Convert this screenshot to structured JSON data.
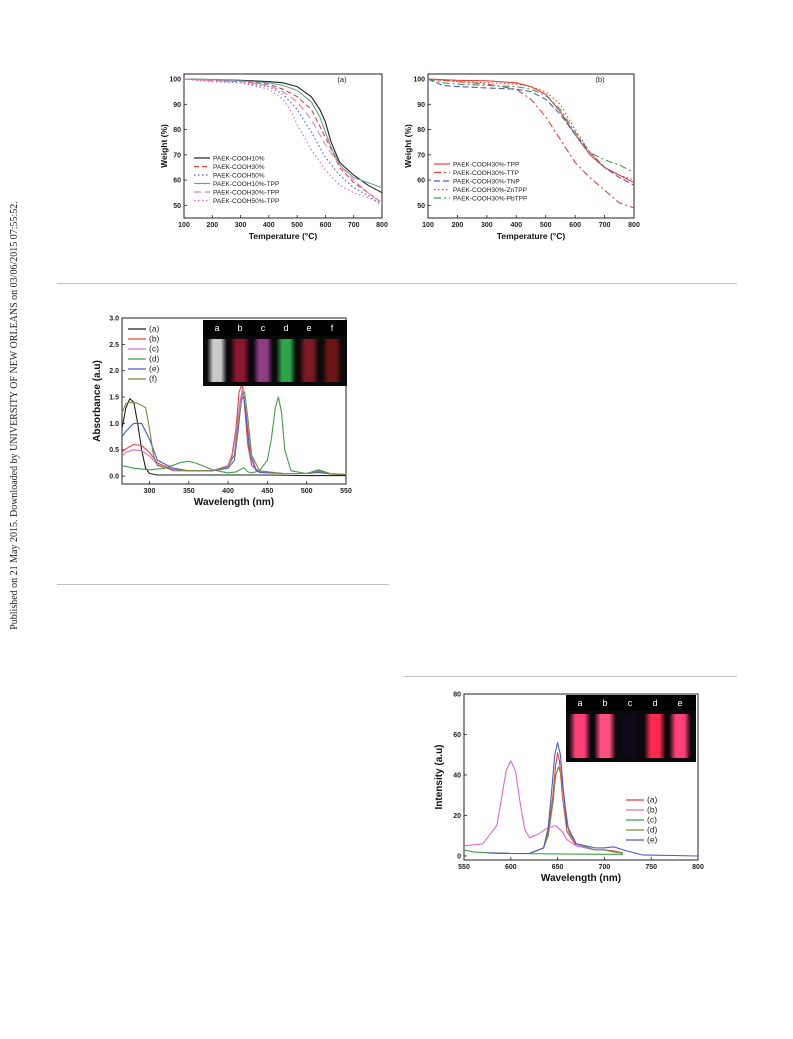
{
  "margin_note": "Published on 21 May 2015. Downloaded by UNIVERSITY OF NEW ORLEANS on 03/06/2015 07:55:52.",
  "colors": {
    "black": "#222222",
    "red": "#e8413d",
    "magenta": "#d66bd1",
    "green": "#3f9f49",
    "blue": "#4a5cc9",
    "olive": "#7d8a3a",
    "teal": "#5fa7a0",
    "pink": "#e57fc0",
    "rule": "#bfbfbf"
  },
  "inset_uvvis": {
    "labels": [
      "a",
      "b",
      "c",
      "d",
      "e",
      "f"
    ],
    "vial_colors": [
      "#c9c9c9",
      "#8a1630",
      "#8e3c86",
      "#2ea34a",
      "#7a1a22",
      "#6b1518"
    ]
  },
  "inset_pl": {
    "labels": [
      "a",
      "b",
      "c",
      "d",
      "e"
    ],
    "vial_colors": [
      "#ff3f78",
      "#ff4f80",
      "#12081c",
      "#ff2850",
      "#ff3f78"
    ]
  },
  "chart_data": [
    {
      "type": "line",
      "panel": "(a)",
      "xlabel": "Temperature (°C)",
      "ylabel": "Weight (%)",
      "xlim": [
        100,
        800
      ],
      "ylim": [
        45,
        102
      ],
      "xticks": [
        100,
        200,
        300,
        400,
        500,
        600,
        700,
        800
      ],
      "yticks": [
        50,
        60,
        70,
        80,
        90,
        100
      ],
      "legend_position": "bottom-left",
      "series": [
        {
          "name": "PAEK-COOH10%",
          "color": "#222222",
          "dash": "",
          "x": [
            100,
            200,
            300,
            400,
            450,
            500,
            550,
            580,
            600,
            620,
            650,
            700,
            750,
            800
          ],
          "y": [
            100,
            99.8,
            99.5,
            99,
            98.5,
            97,
            93,
            88,
            83,
            75,
            67,
            62,
            58,
            55
          ]
        },
        {
          "name": "PAEK-COOH30%",
          "color": "#e8413d",
          "dash": "5,3",
          "x": [
            100,
            200,
            300,
            400,
            450,
            500,
            550,
            600,
            630,
            650,
            700,
            750,
            800
          ],
          "y": [
            100,
            99.5,
            99,
            98,
            96,
            93,
            88,
            77,
            70,
            65,
            59,
            55,
            51
          ]
        },
        {
          "name": "PAEK-COOH50%",
          "color": "#4a5cc9",
          "dash": "1.5,2.5",
          "x": [
            100,
            200,
            300,
            400,
            450,
            500,
            550,
            600,
            650,
            700,
            750,
            800
          ],
          "y": [
            100,
            99,
            98.5,
            97,
            94,
            88,
            79,
            69,
            62,
            57,
            54,
            50
          ]
        },
        {
          "name": "PAEK-COOH10%-TPP",
          "color": "#5fa7a0",
          "dash": "",
          "x": [
            100,
            200,
            300,
            400,
            450,
            500,
            550,
            580,
            600,
            620,
            650,
            700,
            750,
            800
          ],
          "y": [
            100,
            99.8,
            99.3,
            98.5,
            97.5,
            95.5,
            91,
            85,
            79,
            73,
            66,
            61,
            59,
            57
          ]
        },
        {
          "name": "PAEK-COOH30%-TPP",
          "color": "#e57fc0",
          "dash": "7,4",
          "x": [
            100,
            200,
            300,
            400,
            450,
            500,
            550,
            600,
            650,
            700,
            750,
            800
          ],
          "y": [
            100,
            99.3,
            99,
            97.5,
            95,
            91,
            84,
            74,
            66,
            60,
            55,
            51
          ]
        },
        {
          "name": "PAEK-COOH50%-TPP",
          "color": "#d66bd1",
          "dash": "1.5,2.5",
          "x": [
            100,
            200,
            300,
            400,
            450,
            480,
            500,
            550,
            600,
            650,
            700,
            750,
            800
          ],
          "y": [
            100,
            99,
            98.5,
            96,
            92,
            87,
            82,
            72,
            64,
            58,
            55,
            53,
            51
          ]
        }
      ]
    },
    {
      "type": "line",
      "panel": "(b)",
      "xlabel": "Temperature (°C)",
      "ylabel": "Weight (%)",
      "xlim": [
        100,
        800
      ],
      "ylim": [
        45,
        102
      ],
      "xticks": [
        100,
        200,
        300,
        400,
        500,
        600,
        700,
        800
      ],
      "yticks": [
        50,
        60,
        70,
        80,
        90,
        100
      ],
      "legend_position": "bottom-left",
      "series": [
        {
          "name": "PAEK-COOH30%-TPP",
          "color": "#e8413d",
          "dash": "",
          "x": [
            100,
            200,
            300,
            400,
            450,
            500,
            550,
            600,
            650,
            700,
            750,
            800
          ],
          "y": [
            100,
            99.5,
            99.3,
            98.5,
            97,
            94,
            87,
            78,
            70,
            65,
            62,
            59
          ]
        },
        {
          "name": "PAEK-COOH30%-TTP",
          "color": "#e8413d",
          "dash": "7,3,2,3",
          "x": [
            100,
            200,
            300,
            400,
            450,
            500,
            550,
            600,
            650,
            700,
            750,
            800
          ],
          "y": [
            100,
            99,
            98,
            96,
            92,
            85,
            76,
            67,
            61,
            56,
            51,
            49
          ]
        },
        {
          "name": "PAEK-COOH30%-TNP",
          "color": "#4a5cc9",
          "dash": "6,3",
          "x": [
            100,
            150,
            200,
            300,
            400,
            450,
            500,
            550,
            600,
            650,
            700,
            750,
            800
          ],
          "y": [
            100,
            97.5,
            97,
            96.5,
            96,
            95,
            92,
            86,
            78,
            71,
            65,
            61,
            58
          ]
        },
        {
          "name": "PAEK-COOH30%-ZnTPP",
          "color": "#e8413d",
          "dash": "1.5,2.5",
          "x": [
            100,
            200,
            300,
            400,
            450,
            500,
            550,
            600,
            650,
            700,
            750,
            800
          ],
          "y": [
            100,
            99,
            98.5,
            98,
            97,
            95,
            90,
            80,
            71,
            65,
            62,
            60
          ]
        },
        {
          "name": "PAEK-COOH30%-PbTPP",
          "color": "#3f9f49",
          "dash": "7,3,2,3",
          "x": [
            100,
            150,
            200,
            300,
            400,
            450,
            500,
            550,
            600,
            650,
            700,
            750,
            800
          ],
          "y": [
            100,
            98.5,
            98,
            97.5,
            97,
            96,
            93.5,
            88,
            79,
            71,
            68,
            66,
            63
          ]
        }
      ]
    },
    {
      "type": "line",
      "xlabel": "Wavelength (nm)",
      "ylabel": "Absorbance (a.u)",
      "xlim": [
        265,
        550
      ],
      "ylim": [
        -0.15,
        3.0
      ],
      "xticks": [
        300,
        350,
        400,
        450,
        500,
        550
      ],
      "yticks": [
        0.0,
        0.5,
        1.0,
        1.5,
        2.0,
        2.5,
        3.0
      ],
      "yticklabels": [
        "0.0",
        "0.5",
        "1.0",
        "1.5",
        "2.0",
        "2.5",
        "3.0"
      ],
      "legend_position": "top-left",
      "series": [
        {
          "name": "(a)",
          "color": "#222222",
          "x": [
            265,
            270,
            275,
            280,
            285,
            290,
            295,
            300,
            310,
            350,
            400,
            450,
            500,
            550
          ],
          "y": [
            0.9,
            1.3,
            1.47,
            1.4,
            1.0,
            0.5,
            0.15,
            0.05,
            0.02,
            0.02,
            0.02,
            0.02,
            0.01,
            0.01
          ]
        },
        {
          "name": "(b)",
          "color": "#e8413d",
          "x": [
            265,
            270,
            280,
            290,
            300,
            310,
            330,
            350,
            380,
            400,
            405,
            410,
            414,
            418,
            420,
            425,
            430,
            440,
            470,
            500,
            515,
            530,
            550
          ],
          "y": [
            0.45,
            0.52,
            0.6,
            0.58,
            0.45,
            0.25,
            0.12,
            0.1,
            0.1,
            0.2,
            0.4,
            0.9,
            1.6,
            1.75,
            1.5,
            0.6,
            0.2,
            0.08,
            0.05,
            0.05,
            0.1,
            0.04,
            0.03
          ]
        },
        {
          "name": "(c)",
          "color": "#d66bd1",
          "x": [
            265,
            270,
            280,
            290,
            300,
            310,
            330,
            350,
            380,
            400,
            405,
            410,
            415,
            418,
            422,
            428,
            435,
            440,
            470,
            500,
            515,
            530,
            550
          ],
          "y": [
            0.38,
            0.45,
            0.5,
            0.48,
            0.38,
            0.22,
            0.1,
            0.1,
            0.1,
            0.2,
            0.35,
            0.8,
            1.4,
            1.65,
            1.3,
            0.5,
            0.15,
            0.08,
            0.05,
            0.05,
            0.08,
            0.04,
            0.03
          ]
        },
        {
          "name": "(d)",
          "color": "#3f9f49",
          "x": [
            265,
            280,
            300,
            320,
            340,
            350,
            360,
            380,
            400,
            410,
            415,
            420,
            425,
            430,
            440,
            450,
            455,
            460,
            464,
            468,
            472,
            480,
            500,
            515,
            530,
            550
          ],
          "y": [
            0.2,
            0.15,
            0.12,
            0.15,
            0.26,
            0.28,
            0.24,
            0.12,
            0.06,
            0.08,
            0.12,
            0.16,
            0.08,
            0.06,
            0.1,
            0.3,
            0.7,
            1.3,
            1.5,
            1.2,
            0.5,
            0.1,
            0.05,
            0.12,
            0.05,
            0.03
          ]
        },
        {
          "name": "(e)",
          "color": "#4a5cc9",
          "x": [
            265,
            270,
            280,
            290,
            300,
            310,
            330,
            350,
            380,
            400,
            408,
            413,
            417,
            420,
            423,
            428,
            435,
            440,
            470,
            500,
            515,
            530,
            550
          ],
          "y": [
            0.75,
            0.85,
            1.0,
            1.0,
            0.7,
            0.3,
            0.15,
            0.1,
            0.1,
            0.15,
            0.3,
            0.9,
            1.45,
            1.5,
            1.1,
            0.4,
            0.12,
            0.07,
            0.05,
            0.05,
            0.07,
            0.04,
            0.03
          ]
        },
        {
          "name": "(f)",
          "color": "#7d8a3a",
          "x": [
            265,
            270,
            275,
            285,
            295,
            300,
            305,
            310,
            330,
            350,
            380,
            400,
            408,
            413,
            418,
            421,
            425,
            430,
            440,
            470,
            500,
            515,
            530,
            550
          ],
          "y": [
            1.2,
            1.38,
            1.4,
            1.38,
            1.3,
            0.9,
            0.4,
            0.2,
            0.12,
            0.1,
            0.1,
            0.18,
            0.4,
            1.0,
            1.55,
            1.6,
            1.1,
            0.4,
            0.1,
            0.05,
            0.05,
            0.1,
            0.04,
            0.03
          ]
        }
      ]
    },
    {
      "type": "line",
      "xlabel": "Wavelength (nm)",
      "ylabel": "Intensity (a.u)",
      "xlim": [
        550,
        800
      ],
      "ylim": [
        -2,
        80
      ],
      "xticks": [
        550,
        600,
        650,
        700,
        750,
        800
      ],
      "yticks": [
        0,
        20,
        40,
        60,
        80
      ],
      "legend_position": "bottom-right",
      "series": [
        {
          "name": "(a)",
          "color": "#e8413d",
          "x": [
            580,
            600,
            620,
            635,
            640,
            645,
            648,
            650,
            652,
            655,
            660,
            670,
            690,
            700,
            710,
            720
          ],
          "y": [
            1.5,
            1.2,
            1.2,
            4,
            12,
            30,
            45,
            51,
            47,
            30,
            12,
            5,
            3,
            3,
            2.5,
            1.5
          ]
        },
        {
          "name": "(b)",
          "color": "#d66bd1",
          "x": [
            550,
            570,
            585,
            590,
            595,
            600,
            605,
            610,
            615,
            620,
            630,
            640,
            648,
            655,
            660,
            670,
            690,
            700,
            710,
            720
          ],
          "y": [
            5,
            6,
            15,
            28,
            42,
            47,
            42,
            26,
            13,
            9,
            11,
            14,
            15,
            12,
            8,
            5,
            3,
            3,
            2,
            1.5
          ]
        },
        {
          "name": "(c)",
          "color": "#3f9f49",
          "x": [
            550,
            560,
            580,
            600,
            650,
            700,
            720
          ],
          "y": [
            3,
            2,
            1.5,
            1.2,
            1,
            0.8,
            0.8
          ]
        },
        {
          "name": "(d)",
          "color": "#7d8a3a",
          "x": [
            580,
            600,
            620,
            635,
            640,
            645,
            648,
            651,
            654,
            658,
            662,
            670,
            690,
            700,
            710,
            720
          ],
          "y": [
            1.5,
            1.2,
            1.2,
            4,
            10,
            26,
            40,
            44,
            40,
            25,
            12,
            6,
            3,
            3,
            2,
            1.5
          ]
        },
        {
          "name": "(e)",
          "color": "#4a5cc9",
          "x": [
            575,
            600,
            620,
            635,
            640,
            644,
            647,
            650,
            653,
            656,
            660,
            670,
            690,
            700,
            710,
            720,
            740,
            800
          ],
          "y": [
            1.5,
            1.2,
            1.2,
            4,
            14,
            34,
            50,
            56,
            50,
            33,
            15,
            6,
            4,
            4,
            4.5,
            3,
            0.5,
            0
          ]
        }
      ]
    }
  ]
}
